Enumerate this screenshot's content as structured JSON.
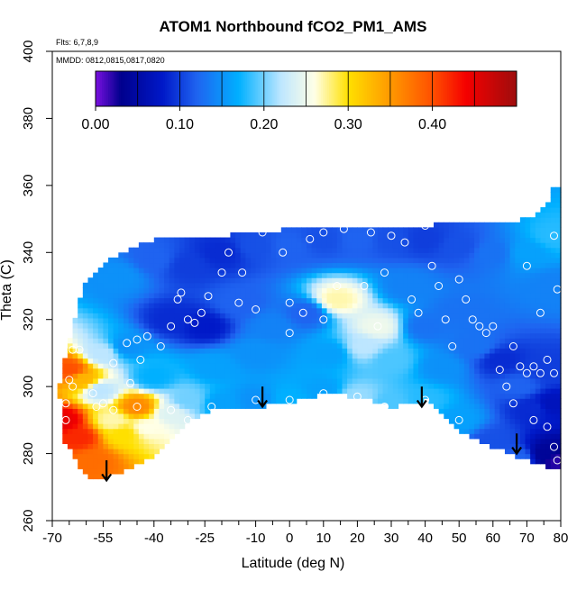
{
  "chart_data": {
    "type": "heatmap",
    "title": "ATOM1 Northbound fCO2_PM1_AMS",
    "subtitle_lines": [
      "Flts: 6,7,8,9",
      "MMDD: 0812,0815,0817,0820"
    ],
    "xlabel": "Latitude (deg N)",
    "ylabel": "Theta (C)",
    "xlim": [
      -70,
      80
    ],
    "ylim": [
      260,
      400
    ],
    "x_ticks": [
      -70,
      -55,
      -40,
      -25,
      -10,
      0,
      10,
      20,
      30,
      40,
      50,
      60,
      70,
      80
    ],
    "x_minor_ticks": [
      -65,
      -60,
      -50,
      -45,
      -35,
      -30,
      -20,
      -15,
      -5,
      5,
      15,
      25,
      35,
      45,
      55,
      65,
      75
    ],
    "y_ticks": [
      260,
      280,
      300,
      320,
      340,
      360,
      380,
      400
    ],
    "colorbar": {
      "min": 0.0,
      "max": 0.5,
      "tick_values": [
        0.0,
        0.1,
        0.2,
        0.3,
        0.4
      ],
      "tick_labels": [
        "0.00",
        "0.10",
        "0.20",
        "0.30",
        "0.40"
      ],
      "bins": [
        0.0,
        0.05,
        0.1,
        0.15,
        0.2,
        0.25,
        0.3,
        0.35,
        0.4,
        0.45,
        0.5
      ],
      "stops": [
        {
          "v": 0.0,
          "c": "#7a10e0"
        },
        {
          "v": 0.03,
          "c": "#00008c"
        },
        {
          "v": 0.08,
          "c": "#0019c8"
        },
        {
          "v": 0.12,
          "c": "#1f63f0"
        },
        {
          "v": 0.17,
          "c": "#00b0ff"
        },
        {
          "v": 0.22,
          "c": "#bde6ff"
        },
        {
          "v": 0.26,
          "c": "#ffffe6"
        },
        {
          "v": 0.3,
          "c": "#ffe000"
        },
        {
          "v": 0.35,
          "c": "#ff9900"
        },
        {
          "v": 0.4,
          "c": "#ff5000"
        },
        {
          "v": 0.44,
          "c": "#f50000"
        },
        {
          "v": 0.5,
          "c": "#9e0d0d"
        }
      ]
    },
    "field_anchors": [
      [
        -67,
        290,
        0.45
      ],
      [
        -62,
        285,
        0.42
      ],
      [
        -58,
        278,
        0.38
      ],
      [
        -65,
        305,
        0.4
      ],
      [
        -61,
        302,
        0.33
      ],
      [
        -56,
        299,
        0.22
      ],
      [
        -52,
        290,
        0.27
      ],
      [
        -49,
        286,
        0.3
      ],
      [
        -45,
        294,
        0.36
      ],
      [
        -42,
        288,
        0.26
      ],
      [
        -55,
        310,
        0.22
      ],
      [
        -48,
        312,
        0.15
      ],
      [
        -40,
        303,
        0.17
      ],
      [
        -35,
        292,
        0.24
      ],
      [
        -30,
        296,
        0.2
      ],
      [
        -20,
        295,
        0.16
      ],
      [
        -10,
        296,
        0.15
      ],
      [
        0,
        296,
        0.17
      ],
      [
        10,
        299,
        0.16
      ],
      [
        20,
        297,
        0.21
      ],
      [
        30,
        295,
        0.19
      ],
      [
        40,
        296,
        0.18
      ],
      [
        50,
        290,
        0.16
      ],
      [
        60,
        284,
        0.11
      ],
      [
        68,
        279,
        0.12
      ],
      [
        75,
        280,
        0.04
      ],
      [
        79,
        278,
        0.02
      ],
      [
        -35,
        320,
        0.09
      ],
      [
        -25,
        318,
        0.08
      ],
      [
        -15,
        325,
        0.12
      ],
      [
        -5,
        318,
        0.14
      ],
      [
        5,
        322,
        0.12
      ],
      [
        -50,
        333,
        0.15
      ],
      [
        -40,
        338,
        0.12
      ],
      [
        -30,
        336,
        0.1
      ],
      [
        -20,
        340,
        0.09
      ],
      [
        -10,
        342,
        0.11
      ],
      [
        0,
        342,
        0.12
      ],
      [
        10,
        344,
        0.11
      ],
      [
        20,
        344,
        0.12
      ],
      [
        30,
        344,
        0.11
      ],
      [
        40,
        344,
        0.1
      ],
      [
        50,
        342,
        0.11
      ],
      [
        60,
        340,
        0.13
      ],
      [
        70,
        340,
        0.16
      ],
      [
        78,
        345,
        0.18
      ],
      [
        14,
        326,
        0.27
      ],
      [
        26,
        318,
        0.25
      ],
      [
        22,
        312,
        0.22
      ],
      [
        30,
        308,
        0.19
      ],
      [
        12,
        310,
        0.16
      ],
      [
        40,
        318,
        0.13
      ],
      [
        50,
        322,
        0.13
      ],
      [
        45,
        306,
        0.15
      ],
      [
        55,
        312,
        0.13
      ],
      [
        62,
        308,
        0.09
      ],
      [
        68,
        300,
        0.12
      ],
      [
        72,
        294,
        0.09
      ],
      [
        77,
        295,
        0.07
      ],
      [
        76,
        305,
        0.1
      ],
      [
        78,
        330,
        0.14
      ],
      [
        35,
        330,
        0.14
      ],
      [
        -10,
        310,
        0.15
      ],
      [
        -22,
        306,
        0.16
      ]
    ],
    "domain_top": [
      [
        -60,
        332
      ],
      [
        -50,
        340
      ],
      [
        -40,
        344
      ],
      [
        -20,
        345
      ],
      [
        0,
        347
      ],
      [
        20,
        347
      ],
      [
        40,
        348
      ],
      [
        50,
        349
      ],
      [
        60,
        349
      ],
      [
        70,
        350
      ],
      [
        76,
        354
      ],
      [
        78,
        360
      ],
      [
        80,
        360
      ]
    ],
    "domain_bottom": [
      [
        -67,
        285
      ],
      [
        -62,
        276
      ],
      [
        -58,
        272
      ],
      [
        -50,
        274
      ],
      [
        -42,
        278
      ],
      [
        -35,
        285
      ],
      [
        -30,
        290
      ],
      [
        -20,
        294
      ],
      [
        -10,
        294
      ],
      [
        0,
        295
      ],
      [
        10,
        298
      ],
      [
        20,
        297
      ],
      [
        30,
        294
      ],
      [
        40,
        296
      ],
      [
        50,
        287
      ],
      [
        60,
        282
      ],
      [
        70,
        278
      ],
      [
        76,
        276
      ],
      [
        80,
        276
      ]
    ],
    "domain_left": [
      [
        -67,
        285
      ],
      [
        -68,
        300
      ],
      [
        -66,
        310
      ],
      [
        -63,
        322
      ],
      [
        -60,
        332
      ]
    ],
    "observation_points": [
      [
        -66,
        290
      ],
      [
        -66,
        295
      ],
      [
        -64,
        311
      ],
      [
        -62,
        311
      ],
      [
        -65,
        302
      ],
      [
        -52,
        307
      ],
      [
        -57,
        294
      ],
      [
        -55,
        295
      ],
      [
        -52,
        293
      ],
      [
        -45,
        294
      ],
      [
        -47,
        301
      ],
      [
        -48,
        313
      ],
      [
        -45,
        314
      ],
      [
        -42,
        315
      ],
      [
        -44,
        308
      ],
      [
        -38,
        312
      ],
      [
        -35,
        318
      ],
      [
        -33,
        326
      ],
      [
        -30,
        320
      ],
      [
        -28,
        319
      ],
      [
        -26,
        322
      ],
      [
        -32,
        328
      ],
      [
        -24,
        327
      ],
      [
        -20,
        334
      ],
      [
        -18,
        340
      ],
      [
        -14,
        334
      ],
      [
        -15,
        325
      ],
      [
        -10,
        323
      ],
      [
        -8,
        346
      ],
      [
        -2,
        340
      ],
      [
        0,
        325
      ],
      [
        0,
        316
      ],
      [
        4,
        322
      ],
      [
        6,
        344
      ],
      [
        10,
        346
      ],
      [
        10,
        320
      ],
      [
        14,
        330
      ],
      [
        16,
        347
      ],
      [
        22,
        330
      ],
      [
        24,
        346
      ],
      [
        26,
        318
      ],
      [
        28,
        334
      ],
      [
        30,
        345
      ],
      [
        34,
        343
      ],
      [
        36,
        326
      ],
      [
        38,
        322
      ],
      [
        40,
        348
      ],
      [
        42,
        336
      ],
      [
        44,
        330
      ],
      [
        46,
        320
      ],
      [
        48,
        312
      ],
      [
        50,
        332
      ],
      [
        52,
        326
      ],
      [
        54,
        320
      ],
      [
        56,
        318
      ],
      [
        58,
        316
      ],
      [
        60,
        318
      ],
      [
        62,
        305
      ],
      [
        64,
        300
      ],
      [
        66,
        312
      ],
      [
        68,
        306
      ],
      [
        70,
        304
      ],
      [
        72,
        306
      ],
      [
        74,
        304
      ],
      [
        76,
        308
      ],
      [
        78,
        304
      ],
      [
        70,
        336
      ],
      [
        74,
        322
      ],
      [
        78,
        345
      ],
      [
        79,
        329
      ],
      [
        -10,
        296
      ],
      [
        0,
        296
      ],
      [
        10,
        298
      ],
      [
        20,
        297
      ],
      [
        28,
        294
      ],
      [
        40,
        296
      ],
      [
        50,
        290
      ],
      [
        66,
        295
      ],
      [
        72,
        290
      ],
      [
        76,
        288
      ],
      [
        78,
        282
      ],
      [
        79,
        278
      ],
      [
        -64,
        300
      ],
      [
        -58,
        298
      ],
      [
        -35,
        293
      ],
      [
        -23,
        294
      ],
      [
        -30,
        290
      ]
    ],
    "arrows": [
      {
        "x": -54,
        "y_top": 278,
        "y_bottom": 272
      },
      {
        "x": -8,
        "y_top": 300,
        "y_bottom": 294
      },
      {
        "x": 39,
        "y_top": 300,
        "y_bottom": 294
      },
      {
        "x": 67,
        "y_top": 286,
        "y_bottom": 280
      }
    ]
  }
}
